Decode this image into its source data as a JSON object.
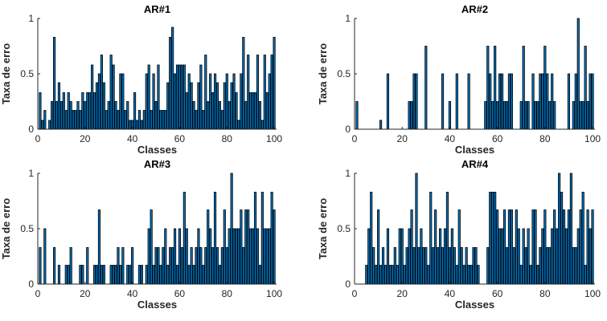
{
  "chart_data": [
    {
      "type": "bar",
      "title": "AR#1",
      "xlabel": "Classes",
      "ylabel": "Taxa de erro",
      "xlim": [
        0,
        101
      ],
      "ylim": [
        0,
        1
      ],
      "xticks": [
        "0",
        "20",
        "40",
        "60",
        "80",
        "100"
      ],
      "yticks": [
        "0",
        "0.5",
        "1"
      ],
      "x": [
        1,
        2,
        3,
        4,
        5,
        6,
        7,
        8,
        9,
        10,
        11,
        12,
        13,
        14,
        15,
        16,
        17,
        18,
        19,
        20,
        21,
        22,
        23,
        24,
        25,
        26,
        27,
        28,
        29,
        30,
        31,
        32,
        33,
        34,
        35,
        36,
        37,
        38,
        39,
        40,
        41,
        42,
        43,
        44,
        45,
        46,
        47,
        48,
        49,
        50,
        51,
        52,
        53,
        54,
        55,
        56,
        57,
        58,
        59,
        60,
        61,
        62,
        63,
        64,
        65,
        66,
        67,
        68,
        69,
        70,
        71,
        72,
        73,
        74,
        75,
        76,
        77,
        78,
        79,
        80,
        81,
        82,
        83,
        84,
        85,
        86,
        87,
        88,
        89,
        90,
        91,
        92,
        93,
        94,
        95,
        96,
        97,
        98,
        99,
        100
      ],
      "values": [
        0.33,
        0.08,
        0.17,
        0.0,
        0.08,
        0.25,
        0.83,
        0.25,
        0.42,
        0.25,
        0.33,
        0.17,
        0.33,
        0.25,
        0.17,
        0.17,
        0.25,
        0.17,
        0.33,
        0.25,
        0.33,
        0.33,
        0.58,
        0.33,
        0.42,
        0.5,
        0.67,
        0.42,
        0.17,
        0.25,
        0.67,
        0.58,
        0.25,
        0.17,
        0.5,
        0.5,
        0.17,
        0.25,
        0.08,
        0.08,
        0.33,
        0.08,
        0.17,
        0.08,
        0.17,
        0.5,
        0.58,
        0.17,
        0.5,
        0.25,
        0.58,
        0.17,
        0.17,
        0.17,
        0.42,
        0.83,
        0.92,
        0.5,
        0.58,
        0.58,
        0.58,
        0.58,
        0.33,
        0.5,
        0.42,
        0.25,
        0.17,
        0.42,
        0.58,
        0.17,
        0.67,
        0.25,
        0.5,
        0.33,
        0.5,
        0.42,
        0.25,
        0.17,
        0.42,
        0.5,
        0.25,
        0.42,
        0.5,
        0.33,
        0.08,
        0.5,
        0.83,
        0.25,
        0.67,
        0.33,
        0.33,
        0.33,
        0.67,
        0.25,
        0.08,
        0.67,
        0.33,
        0.5,
        0.67,
        0.83
      ]
    },
    {
      "type": "bar",
      "title": "AR#2",
      "xlabel": "Classes",
      "ylabel": "Taxa de erro",
      "xlim": [
        0,
        101
      ],
      "ylim": [
        0,
        1
      ],
      "xticks": [
        "0",
        "20",
        "40",
        "60",
        "80",
        "100"
      ],
      "yticks": [
        "0",
        "0.5",
        "1"
      ],
      "x": [
        1,
        2,
        3,
        4,
        5,
        6,
        7,
        8,
        9,
        10,
        11,
        12,
        13,
        14,
        15,
        16,
        17,
        18,
        19,
        20,
        21,
        22,
        23,
        24,
        25,
        26,
        27,
        28,
        29,
        30,
        31,
        32,
        33,
        34,
        35,
        36,
        37,
        38,
        39,
        40,
        41,
        42,
        43,
        44,
        45,
        46,
        47,
        48,
        49,
        50,
        51,
        52,
        53,
        54,
        55,
        56,
        57,
        58,
        59,
        60,
        61,
        62,
        63,
        64,
        65,
        66,
        67,
        68,
        69,
        70,
        71,
        72,
        73,
        74,
        75,
        76,
        77,
        78,
        79,
        80,
        81,
        82,
        83,
        84,
        85,
        86,
        87,
        88,
        89,
        90,
        91,
        92,
        93,
        94,
        95,
        96,
        97,
        98,
        99,
        100
      ],
      "values": [
        0.25,
        0,
        0,
        0,
        0,
        0,
        0,
        0,
        0,
        0,
        0.08,
        0,
        0,
        0.5,
        0,
        0,
        0,
        0,
        0,
        0,
        0,
        0,
        0.25,
        0.25,
        0.5,
        0.5,
        0,
        0,
        0,
        0.75,
        0,
        0,
        0,
        0,
        0,
        0,
        0.5,
        0,
        0,
        0.25,
        0,
        0,
        0.5,
        0,
        0,
        0,
        0,
        0.5,
        0,
        0,
        0,
        0,
        0,
        0,
        0.25,
        0.75,
        0.5,
        0.25,
        0.75,
        0.25,
        0.5,
        0.5,
        0.25,
        0.25,
        0.5,
        0.5,
        0,
        0,
        0,
        0.25,
        0.75,
        0.25,
        0.25,
        0,
        0.5,
        0.25,
        0.25,
        0.5,
        0.5,
        0.75,
        0.5,
        0.25,
        0.5,
        0.25,
        0,
        0,
        0,
        0,
        0,
        0.5,
        0,
        0.25,
        0.5,
        1.0,
        0.25,
        0.25,
        0.75,
        0.25,
        0.5,
        0.5
      ]
    },
    {
      "type": "bar",
      "title": "AR#3",
      "xlabel": "Classes",
      "ylabel": "Taxa de erro",
      "xlim": [
        0,
        101
      ],
      "ylim": [
        0,
        1
      ],
      "xticks": [
        "0",
        "20",
        "40",
        "60",
        "80",
        "100"
      ],
      "yticks": [
        "0",
        "0.5",
        "1"
      ],
      "x": [
        1,
        2,
        3,
        4,
        5,
        6,
        7,
        8,
        9,
        10,
        11,
        12,
        13,
        14,
        15,
        16,
        17,
        18,
        19,
        20,
        21,
        22,
        23,
        24,
        25,
        26,
        27,
        28,
        29,
        30,
        31,
        32,
        33,
        34,
        35,
        36,
        37,
        38,
        39,
        40,
        41,
        42,
        43,
        44,
        45,
        46,
        47,
        48,
        49,
        50,
        51,
        52,
        53,
        54,
        55,
        56,
        57,
        58,
        59,
        60,
        61,
        62,
        63,
        64,
        65,
        66,
        67,
        68,
        69,
        70,
        71,
        72,
        73,
        74,
        75,
        76,
        77,
        78,
        79,
        80,
        81,
        82,
        83,
        84,
        85,
        86,
        87,
        88,
        89,
        90,
        91,
        92,
        93,
        94,
        95,
        96,
        97,
        98,
        99,
        100
      ],
      "values": [
        0.33,
        0,
        0.5,
        0,
        0,
        0,
        0.33,
        0,
        0.17,
        0,
        0,
        0.17,
        0.17,
        0.33,
        0,
        0,
        0,
        0.17,
        0.17,
        0,
        0.33,
        0,
        0,
        0.17,
        0.17,
        0.67,
        0.17,
        0.17,
        0,
        0,
        0.17,
        0.17,
        0.17,
        0.33,
        0.17,
        0.33,
        0,
        0.17,
        0.17,
        0.33,
        0,
        0,
        0.17,
        0.17,
        0,
        0.17,
        0.5,
        0.67,
        0.17,
        0.33,
        0.33,
        0.17,
        0.33,
        0.5,
        0.17,
        0.33,
        0.33,
        0.5,
        0.17,
        0.5,
        0.33,
        0.83,
        0.5,
        0.17,
        0.33,
        0.17,
        0.33,
        0.5,
        0.33,
        0.17,
        0.33,
        0.67,
        0.5,
        0.33,
        0.83,
        0.33,
        0.17,
        0.33,
        0.67,
        0.33,
        0.5,
        1.0,
        0.5,
        0.5,
        0.5,
        0.67,
        0.33,
        0.67,
        0.67,
        0.5,
        0.5,
        0.83,
        0.5,
        0.17,
        0.83,
        0.5,
        0.5,
        0.5,
        0.83,
        0.67
      ]
    },
    {
      "type": "bar",
      "title": "AR#4",
      "xlabel": "Classes",
      "ylabel": "Taxa de erro",
      "xlim": [
        0,
        101
      ],
      "ylim": [
        0,
        1
      ],
      "xticks": [
        "0",
        "20",
        "40",
        "60",
        "80",
        "100"
      ],
      "yticks": [
        "0",
        "0.5",
        "1"
      ],
      "x": [
        1,
        2,
        3,
        4,
        5,
        6,
        7,
        8,
        9,
        10,
        11,
        12,
        13,
        14,
        15,
        16,
        17,
        18,
        19,
        20,
        21,
        22,
        23,
        24,
        25,
        26,
        27,
        28,
        29,
        30,
        31,
        32,
        33,
        34,
        35,
        36,
        37,
        38,
        39,
        40,
        41,
        42,
        43,
        44,
        45,
        46,
        47,
        48,
        49,
        50,
        51,
        52,
        53,
        54,
        55,
        56,
        57,
        58,
        59,
        60,
        61,
        62,
        63,
        64,
        65,
        66,
        67,
        68,
        69,
        70,
        71,
        72,
        73,
        74,
        75,
        76,
        77,
        78,
        79,
        80,
        81,
        82,
        83,
        84,
        85,
        86,
        87,
        88,
        89,
        90,
        91,
        92,
        93,
        94,
        95,
        96,
        97,
        98,
        99,
        100
      ],
      "values": [
        0,
        0,
        0,
        0,
        0.17,
        0.5,
        0.83,
        0.33,
        0.17,
        0.67,
        0.17,
        0.33,
        0.17,
        0.5,
        0.17,
        0.17,
        0.33,
        0.17,
        0.5,
        0.5,
        0.17,
        0.33,
        0.5,
        0.67,
        0.33,
        1.0,
        0.33,
        0.5,
        0.33,
        0.33,
        0.17,
        0.83,
        0.33,
        0.67,
        0.33,
        0.5,
        0.33,
        0.5,
        0.83,
        0.33,
        0.5,
        0.33,
        0.17,
        0.67,
        0.33,
        0.17,
        0.33,
        0.17,
        0.17,
        0.33,
        0.33,
        0.17,
        0,
        0,
        0,
        0.33,
        0.83,
        0.83,
        0.83,
        0.67,
        0.5,
        0.5,
        0.67,
        0.33,
        0.67,
        0.67,
        0.33,
        0.67,
        0.5,
        0.17,
        0.5,
        0.33,
        0.5,
        0.17,
        0.67,
        0.67,
        0.17,
        0.33,
        0.5,
        0.67,
        0.33,
        0.33,
        0.5,
        0.67,
        0.5,
        1.0,
        0.83,
        0.67,
        0.5,
        0.67,
        1.0,
        0.33,
        0.33,
        0.5,
        0.67,
        0.83,
        0.17,
        0.67,
        0.5,
        0.67
      ]
    }
  ]
}
